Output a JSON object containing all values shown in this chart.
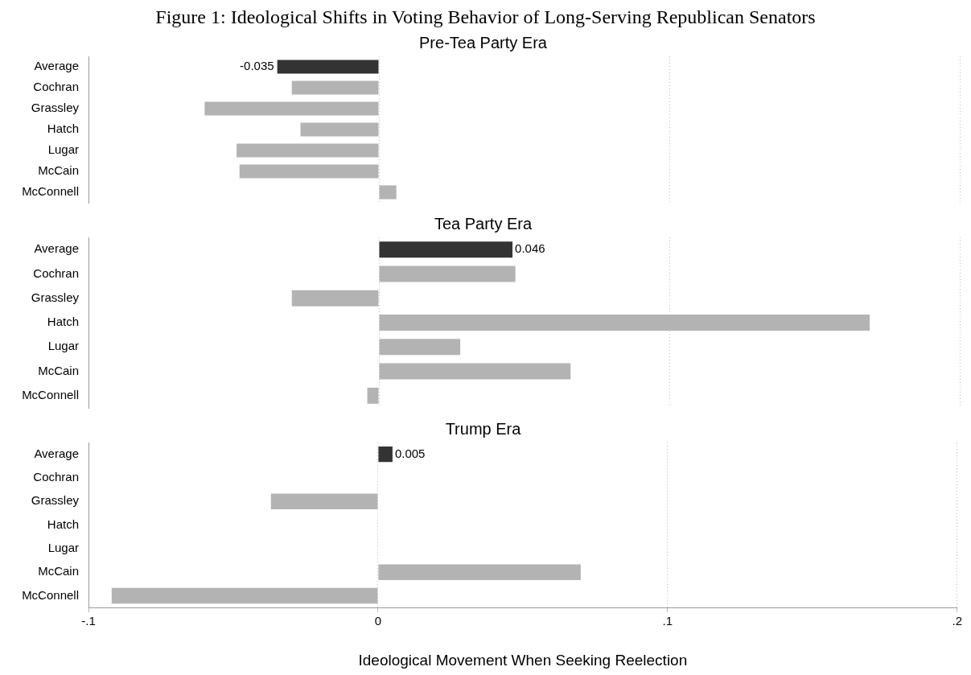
{
  "chart_data": [
    {
      "type": "bar",
      "orientation": "horizontal",
      "title": "Figure 1: Ideological Shifts in Voting Behavior of Long-Serving Republican Senators",
      "subtitle": "Pre-Tea Party Era",
      "categories": [
        "Average",
        "Cochran",
        "Grassley",
        "Hatch",
        "Lugar",
        "McCain",
        "McConnell"
      ],
      "values": [
        -0.035,
        -0.03,
        -0.06,
        -0.027,
        -0.049,
        -0.048,
        0.006
      ],
      "colors": [
        "#333333",
        "#b3b3b3",
        "#b3b3b3",
        "#b3b3b3",
        "#b3b3b3",
        "#b3b3b3",
        "#b3b3b3"
      ],
      "value_labels": [
        "-0.035",
        null,
        null,
        null,
        null,
        null,
        null
      ],
      "xlim": [
        -0.1,
        0.2
      ],
      "xticks": [
        -0.1,
        0,
        0.1,
        0.2
      ],
      "grid": "x",
      "tick_labels": "y",
      "legend": false
    },
    {
      "type": "bar",
      "orientation": "horizontal",
      "subtitle": "Tea Party Era",
      "categories": [
        "Average",
        "Cochran",
        "Grassley",
        "Hatch",
        "Lugar",
        "McCain",
        "McConnell"
      ],
      "values": [
        0.046,
        0.047,
        -0.03,
        0.169,
        0.028,
        0.066,
        -0.004
      ],
      "colors": [
        "#333333",
        "#b3b3b3",
        "#b3b3b3",
        "#b3b3b3",
        "#b3b3b3",
        "#b3b3b3",
        "#b3b3b3"
      ],
      "value_labels": [
        "0.046",
        null,
        null,
        null,
        null,
        null,
        null
      ],
      "xlim": [
        -0.1,
        0.2
      ],
      "xticks": [
        -0.1,
        0,
        0.1,
        0.2
      ],
      "grid": "x",
      "tick_labels": "y",
      "legend": false
    },
    {
      "type": "bar",
      "orientation": "horizontal",
      "subtitle": "Trump Era",
      "xlabel": "Ideological Movement When Seeking Reelection",
      "categories": [
        "Average",
        "Cochran",
        "Grassley",
        "Hatch",
        "Lugar",
        "McCain",
        "McConnell"
      ],
      "values": [
        0.005,
        null,
        -0.037,
        null,
        null,
        0.07,
        -0.092
      ],
      "colors": [
        "#333333",
        "#b3b3b3",
        "#b3b3b3",
        "#b3b3b3",
        "#b3b3b3",
        "#b3b3b3",
        "#b3b3b3"
      ],
      "value_labels": [
        "0.005",
        null,
        null,
        null,
        null,
        null,
        null
      ],
      "xlim": [
        -0.1,
        0.2
      ],
      "xticks": [
        {
          "value": -0.1,
          "label": "-.1"
        },
        0,
        {
          "value": 0.1,
          "label": ".1"
        },
        {
          "value": 0.2,
          "label": ".2"
        }
      ],
      "grid": "x",
      "legend": false
    }
  ]
}
